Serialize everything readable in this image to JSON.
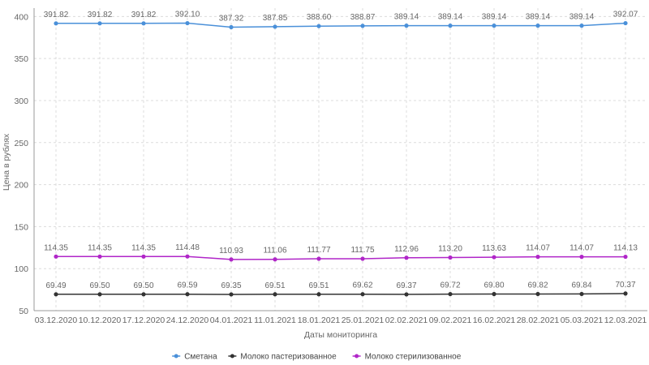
{
  "chart_data": {
    "type": "line",
    "title": "",
    "xlabel": "Даты мониторинга",
    "ylabel": "Цена в рублях",
    "ylim": [
      50,
      410
    ],
    "yticks": [
      50,
      100,
      150,
      200,
      250,
      300,
      350,
      400
    ],
    "grid": true,
    "legend_position": "bottom-center",
    "categories": [
      "03.12.2020",
      "10.12.2020",
      "17.12.2020",
      "24.12.2020",
      "04.01.2021",
      "11.01.2021",
      "18.01.2021",
      "25.01.2021",
      "02.02.2021",
      "09.02.2021",
      "16.02.2021",
      "28.02.2021",
      "05.03.2021",
      "12.03.2021"
    ],
    "series": [
      {
        "name": "Сметана",
        "color": "#4a90d9",
        "values": [
          391.82,
          391.82,
          391.82,
          392.1,
          387.32,
          387.85,
          388.6,
          388.87,
          389.14,
          389.14,
          389.14,
          389.14,
          389.14,
          392.07
        ],
        "labels": [
          "391.82",
          "391.82",
          "391.82",
          "392.10",
          "387.32",
          "387.85",
          "388.60",
          "388.87",
          "389.14",
          "389.14",
          "389.14",
          "389.14",
          "389.14",
          "392.07"
        ]
      },
      {
        "name": "Молоко пастеризованное",
        "color": "#333333",
        "values": [
          69.49,
          69.5,
          69.5,
          69.59,
          69.35,
          69.51,
          69.51,
          69.62,
          69.37,
          69.72,
          69.8,
          69.82,
          69.84,
          70.37
        ],
        "labels": [
          "69.49",
          "69.50",
          "69.50",
          "69.59",
          "69.35",
          "69.51",
          "69.51",
          "69.62",
          "69.37",
          "69.72",
          "69.80",
          "69.82",
          "69.84",
          "70.37"
        ]
      },
      {
        "name": "Молоко стерилизованное",
        "color": "#b026c8",
        "values": [
          114.35,
          114.35,
          114.35,
          114.48,
          110.93,
          111.06,
          111.77,
          111.75,
          112.96,
          113.2,
          113.63,
          114.07,
          114.07,
          114.13
        ],
        "labels": [
          "114.35",
          "114.35",
          "114.35",
          "114.48",
          "110.93",
          "111.06",
          "111.77",
          "111.75",
          "112.96",
          "113.20",
          "113.63",
          "114.07",
          "114.07",
          "114.13"
        ]
      }
    ]
  }
}
